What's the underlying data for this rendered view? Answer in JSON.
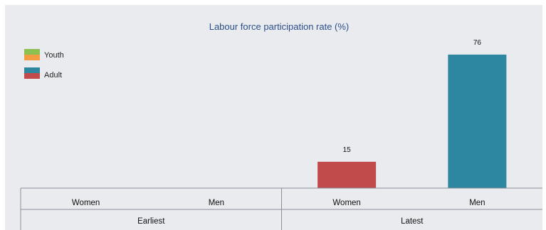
{
  "chart_data": {
    "type": "bar",
    "title": "Labour force participation rate (%)",
    "groups": [
      {
        "name": "Earliest",
        "categories": [
          "Women",
          "Men"
        ]
      },
      {
        "name": "Latest",
        "categories": [
          "Women",
          "Men"
        ]
      }
    ],
    "legend": [
      {
        "name": "Youth",
        "colors": [
          "#8cc152",
          "#f39c41"
        ]
      },
      {
        "name": "Adult",
        "colors": [
          "#2e87a0",
          "#c14b4b"
        ]
      }
    ],
    "legend_position": "top-left",
    "bars": [
      {
        "group": "Earliest",
        "category": "Women",
        "value": null,
        "color": "#c14b4b"
      },
      {
        "group": "Earliest",
        "category": "Men",
        "value": null,
        "color": "#2e87a0"
      },
      {
        "group": "Latest",
        "category": "Women",
        "value": 15,
        "color": "#c14b4b"
      },
      {
        "group": "Latest",
        "category": "Men",
        "value": 76,
        "color": "#2e87a0"
      }
    ],
    "ylim": [
      0,
      80
    ],
    "grid": false
  }
}
